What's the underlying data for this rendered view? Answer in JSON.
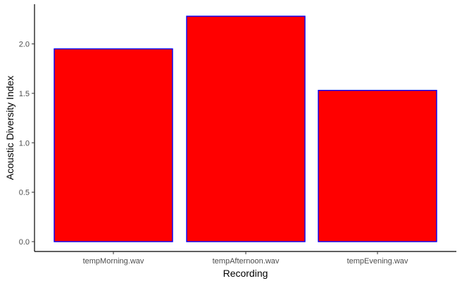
{
  "chart_data": {
    "type": "bar",
    "title": "",
    "xlabel": "Recording",
    "ylabel": "Acoustic Diversity Index",
    "categories": [
      "tempMorning.wav",
      "tempAfternoon.wav",
      "tempEvening.wav"
    ],
    "values": [
      1.95,
      2.28,
      1.53
    ],
    "ylim": [
      0,
      2.38
    ],
    "yticks": [
      0.0,
      0.5,
      1.0,
      1.5,
      2.0
    ],
    "ytick_labels": [
      "0.0",
      "0.5",
      "1.0",
      "1.5",
      "2.0"
    ],
    "grid": false,
    "bar_fill": "#ff0000",
    "bar_stroke": "#0000ff",
    "axis_color": "#000000",
    "tick_label_color": "#4d4d4d"
  }
}
